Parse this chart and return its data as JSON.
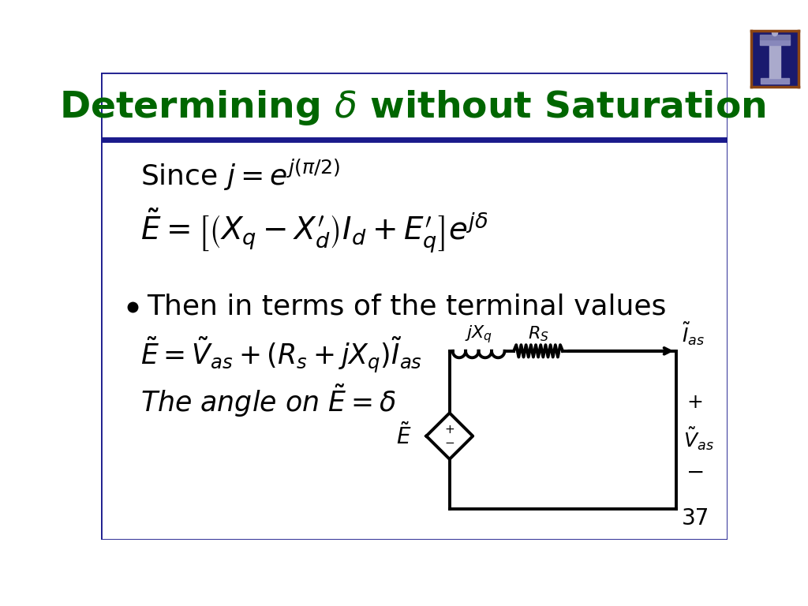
{
  "title": "Determining $\\delta$ without Saturation",
  "title_color": "#006600",
  "title_fontsize": 34,
  "bg_color": "#FFFFFF",
  "border_color": "#1a1a8c",
  "slide_number": "37",
  "eq1": "Since $j = e^{j(\\pi/2)}$",
  "eq2": "$\\tilde{E} = \\left[\\left(X_q - X_d^{\\prime}\\right)I_d + E_q^{\\prime}\\right]e^{j\\delta}$",
  "bullet": "Then in terms of the terminal values",
  "eq3": "$\\tilde{E} = \\tilde{V}_{as} + (R_s + jX_q)\\tilde{I}_{as}$",
  "eq4": "The angle on $\\tilde{E} = \\delta$",
  "text_color": "#000000",
  "eq_fontsize": 26,
  "bullet_fontsize": 26
}
